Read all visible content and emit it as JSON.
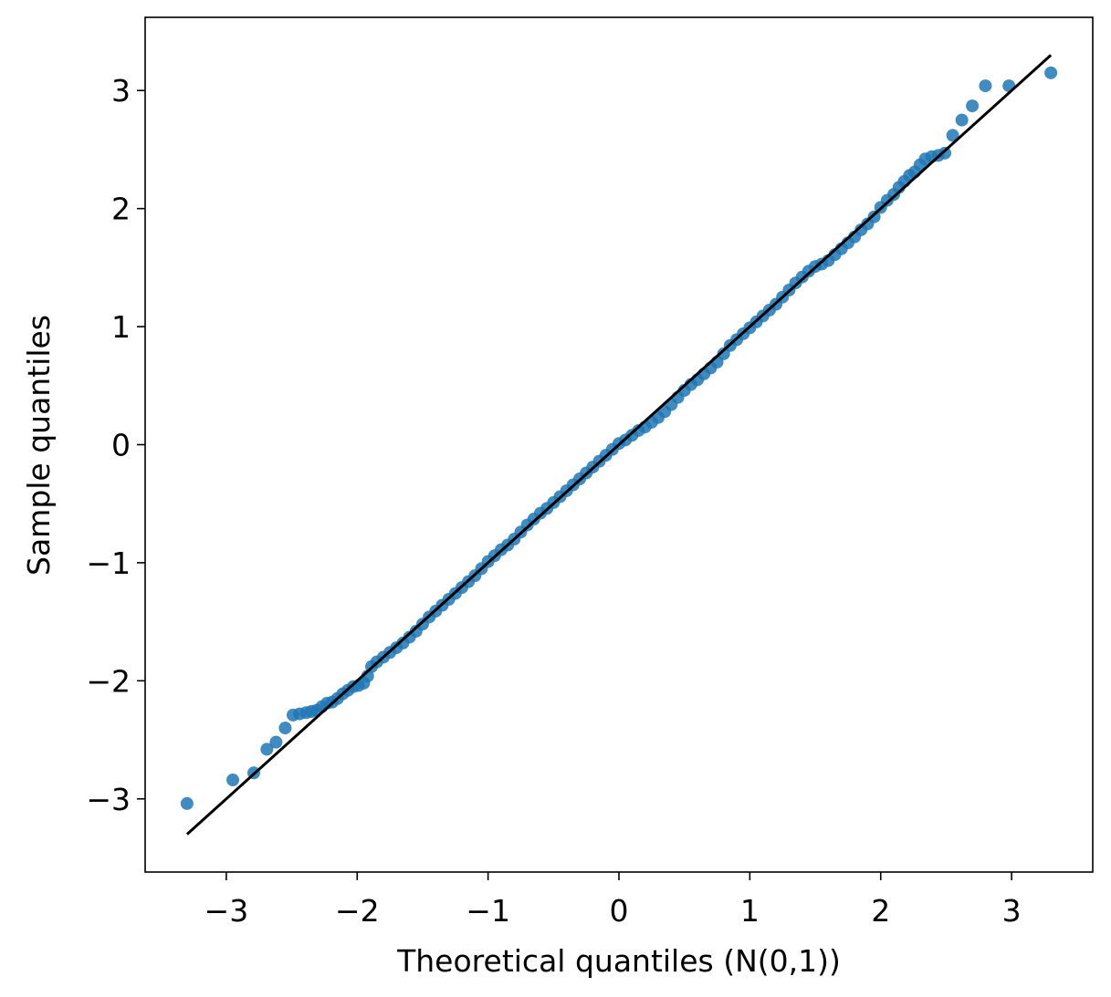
{
  "chart_data": {
    "type": "scatter",
    "title": "",
    "xlabel": "Theoretical quantiles (N(0,1))",
    "ylabel": "Sample quantiles",
    "xlim": [
      -3.62,
      3.62
    ],
    "ylim": [
      -3.62,
      3.62
    ],
    "xticks": [
      -3,
      -2,
      -1,
      0,
      1,
      2,
      3
    ],
    "yticks": [
      -3,
      -2,
      -1,
      0,
      1,
      2,
      3
    ],
    "xtick_labels": [
      "−3",
      "−2",
      "−1",
      "0",
      "1",
      "2",
      "3"
    ],
    "ytick_labels": [
      "−3",
      "−2",
      "−1",
      "0",
      "1",
      "2",
      "3"
    ],
    "grid": false,
    "colors": {
      "points": "#1f77b4",
      "reference_line": "#000000"
    },
    "reference_line": {
      "x": [
        -3.3,
        3.3
      ],
      "y": [
        -3.3,
        3.3
      ]
    },
    "series": [
      {
        "points": [
          [
            -3.3,
            -3.04
          ],
          [
            -2.95,
            -2.84
          ],
          [
            -2.79,
            -2.78
          ],
          [
            -2.69,
            -2.58
          ],
          [
            -2.62,
            -2.52
          ],
          [
            -2.55,
            -2.4
          ],
          [
            -2.49,
            -2.29
          ],
          [
            -2.44,
            -2.28
          ],
          [
            -2.39,
            -2.27
          ],
          [
            -2.35,
            -2.26
          ],
          [
            -2.31,
            -2.25
          ],
          [
            -2.27,
            -2.22
          ],
          [
            -2.23,
            -2.19
          ],
          [
            -2.19,
            -2.18
          ],
          [
            -2.15,
            -2.15
          ],
          [
            -2.11,
            -2.11
          ],
          [
            -2.07,
            -2.08
          ],
          [
            -2.03,
            -2.05
          ],
          [
            -1.99,
            -2.04
          ],
          [
            -1.95,
            -2.02
          ],
          [
            -1.92,
            -1.96
          ],
          [
            -1.89,
            -1.88
          ],
          [
            -1.85,
            -1.84
          ],
          [
            -1.8,
            -1.8
          ],
          [
            -1.75,
            -1.76
          ],
          [
            -1.7,
            -1.72
          ],
          [
            -1.65,
            -1.68
          ],
          [
            -1.6,
            -1.63
          ],
          [
            -1.55,
            -1.58
          ],
          [
            -1.5,
            -1.52
          ],
          [
            -1.45,
            -1.46
          ],
          [
            -1.4,
            -1.41
          ],
          [
            -1.35,
            -1.36
          ],
          [
            -1.3,
            -1.31
          ],
          [
            -1.25,
            -1.26
          ],
          [
            -1.2,
            -1.21
          ],
          [
            -1.15,
            -1.16
          ],
          [
            -1.1,
            -1.11
          ],
          [
            -1.05,
            -1.05
          ],
          [
            -1.0,
            -0.99
          ],
          [
            -0.95,
            -0.94
          ],
          [
            -0.9,
            -0.89
          ],
          [
            -0.85,
            -0.85
          ],
          [
            -0.8,
            -0.8
          ],
          [
            -0.75,
            -0.74
          ],
          [
            -0.7,
            -0.68
          ],
          [
            -0.65,
            -0.63
          ],
          [
            -0.6,
            -0.58
          ],
          [
            -0.55,
            -0.54
          ],
          [
            -0.5,
            -0.49
          ],
          [
            -0.45,
            -0.44
          ],
          [
            -0.4,
            -0.39
          ],
          [
            -0.35,
            -0.34
          ],
          [
            -0.3,
            -0.29
          ],
          [
            -0.25,
            -0.24
          ],
          [
            -0.2,
            -0.19
          ],
          [
            -0.15,
            -0.14
          ],
          [
            -0.1,
            -0.09
          ],
          [
            -0.05,
            -0.04
          ],
          [
            0.0,
            0.01
          ],
          [
            0.05,
            0.04
          ],
          [
            0.1,
            0.08
          ],
          [
            0.15,
            0.12
          ],
          [
            0.2,
            0.15
          ],
          [
            0.25,
            0.19
          ],
          [
            0.3,
            0.23
          ],
          [
            0.35,
            0.28
          ],
          [
            0.4,
            0.34
          ],
          [
            0.45,
            0.4
          ],
          [
            0.5,
            0.46
          ],
          [
            0.55,
            0.51
          ],
          [
            0.6,
            0.55
          ],
          [
            0.65,
            0.6
          ],
          [
            0.7,
            0.65
          ],
          [
            0.75,
            0.7
          ],
          [
            0.8,
            0.77
          ],
          [
            0.85,
            0.84
          ],
          [
            0.9,
            0.89
          ],
          [
            0.95,
            0.94
          ],
          [
            1.0,
            0.99
          ],
          [
            1.05,
            1.04
          ],
          [
            1.1,
            1.09
          ],
          [
            1.15,
            1.14
          ],
          [
            1.2,
            1.19
          ],
          [
            1.25,
            1.25
          ],
          [
            1.3,
            1.31
          ],
          [
            1.35,
            1.37
          ],
          [
            1.4,
            1.42
          ],
          [
            1.45,
            1.47
          ],
          [
            1.5,
            1.51
          ],
          [
            1.55,
            1.53
          ],
          [
            1.6,
            1.56
          ],
          [
            1.65,
            1.61
          ],
          [
            1.7,
            1.66
          ],
          [
            1.75,
            1.71
          ],
          [
            1.8,
            1.76
          ],
          [
            1.85,
            1.82
          ],
          [
            1.9,
            1.87
          ],
          [
            1.95,
            1.93
          ],
          [
            2.0,
            2.01
          ],
          [
            2.05,
            2.07
          ],
          [
            2.1,
            2.12
          ],
          [
            2.14,
            2.18
          ],
          [
            2.18,
            2.23
          ],
          [
            2.22,
            2.28
          ],
          [
            2.26,
            2.31
          ],
          [
            2.3,
            2.37
          ],
          [
            2.34,
            2.42
          ],
          [
            2.39,
            2.44
          ],
          [
            2.44,
            2.45
          ],
          [
            2.49,
            2.47
          ],
          [
            2.55,
            2.62
          ],
          [
            2.62,
            2.75
          ],
          [
            2.7,
            2.87
          ],
          [
            2.8,
            3.04
          ],
          [
            2.98,
            3.04
          ],
          [
            3.3,
            3.15
          ]
        ]
      }
    ]
  }
}
